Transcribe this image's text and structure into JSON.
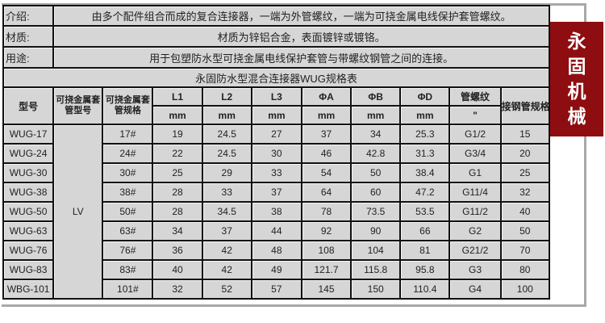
{
  "info": {
    "intro_label": "介绍:",
    "intro": "由多个配件组合而成的复合连接器，一端为外管螺纹，一端为可挠金属电线保护套管螺纹。",
    "material_label": "材质:",
    "material": "材质为锌铝合金，表面镀锌或镀铬。",
    "usage_label": "用途:",
    "usage": "用于包塑防水型可挠金属电线保护套管与带螺纹钢管之间的连接。",
    "title": "永固防水型混合连接器WUG规格表"
  },
  "headers": {
    "model": "型号",
    "hose_model": "可挠金属套管型号",
    "hose_spec": "可挠金属套管规格",
    "l1": "L1",
    "l2": "L2",
    "l3": "L3",
    "a": "ΦA",
    "b": "ΦB",
    "d": "ΦD",
    "thread": "管螺纹",
    "steel": "接钢管规格",
    "unit_mm": "mm",
    "unit_inch": "\""
  },
  "hose_model_value": "LV",
  "rows": [
    [
      "WUG-17",
      "17#",
      "19",
      "24.5",
      "27",
      "37",
      "34",
      "25.3",
      "G1/2",
      "15"
    ],
    [
      "WUG-24",
      "24#",
      "22",
      "24.5",
      "30",
      "46",
      "42.8",
      "31.3",
      "G3/4",
      "20"
    ],
    [
      "WUG-30",
      "30#",
      "25",
      "29",
      "33",
      "54",
      "50",
      "38.4",
      "G1",
      "25"
    ],
    [
      "WUG-38",
      "38#",
      "28",
      "33",
      "37",
      "64",
      "60",
      "47.2",
      "G11/4",
      "32"
    ],
    [
      "WUG-50",
      "50#",
      "28",
      "34.5",
      "38",
      "78",
      "73.5",
      "53.5",
      "G11/2",
      "40"
    ],
    [
      "WUG-63",
      "63#",
      "34",
      "37",
      "44",
      "92",
      "90",
      "66",
      "G2",
      "50"
    ],
    [
      "WUG-76",
      "76#",
      "36",
      "42",
      "48",
      "108",
      "104",
      "81",
      "G21/2",
      "70"
    ],
    [
      "WUG-83",
      "83#",
      "40",
      "42",
      "49",
      "121.7",
      "115.8",
      "95.8",
      "G3",
      "80"
    ],
    [
      "WBG-101",
      "101#",
      "32",
      "52",
      "57",
      "145",
      "150",
      "110.4",
      "G4",
      "100"
    ]
  ],
  "banner": [
    "永",
    "固",
    "机",
    "械"
  ],
  "colors": {
    "banner": "#8e0d10",
    "cell": "#d6d6d6"
  }
}
